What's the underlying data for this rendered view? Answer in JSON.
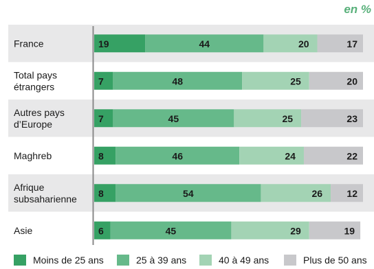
{
  "unit_label": "en %",
  "chart_data": {
    "type": "bar",
    "orientation": "horizontal",
    "stacked": true,
    "categories": [
      [
        "France"
      ],
      [
        "Total pays",
        "étrangers"
      ],
      [
        "Autres pays",
        "d’Europe"
      ],
      [
        "Maghreb"
      ],
      [
        "Afrique",
        "subsaharienne"
      ],
      [
        "Asie"
      ]
    ],
    "series": [
      {
        "name": "Moins de 25 ans",
        "color": "#36a164",
        "label_color": "#1a1a1a",
        "values": [
          19,
          7,
          7,
          8,
          8,
          6
        ]
      },
      {
        "name": "25 à 39 ans",
        "color": "#66b98a",
        "label_color": "#1a1a1a",
        "values": [
          44,
          48,
          45,
          46,
          54,
          45
        ]
      },
      {
        "name": "40 à 49 ans",
        "color": "#a3d3b4",
        "label_color": "#1a1a1a",
        "values": [
          20,
          25,
          25,
          24,
          26,
          29
        ]
      },
      {
        "name": "Plus de 50 ans",
        "color": "#c8c8cb",
        "label_color": "#1a1a1a",
        "values": [
          17,
          20,
          23,
          22,
          12,
          19
        ]
      }
    ],
    "xlim": [
      0,
      100
    ],
    "row_band_colors": [
      "#e8e8e9",
      "#ffffff"
    ],
    "legend_position": "bottom"
  }
}
